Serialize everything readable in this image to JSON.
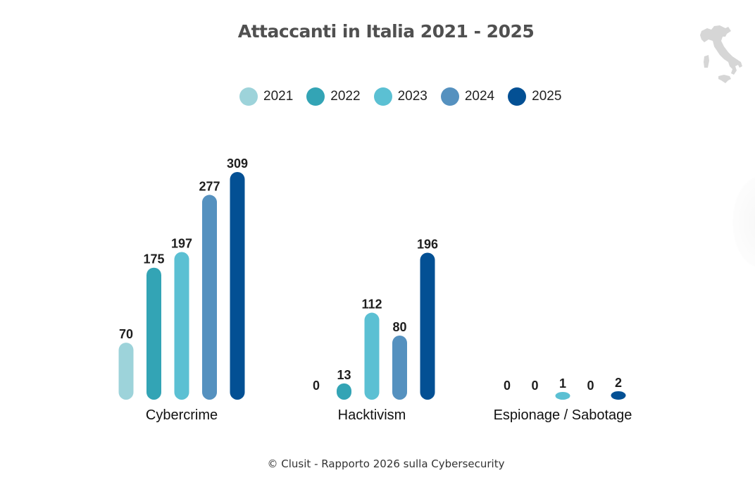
{
  "title": "Attaccanti in Italia 2021 - 2025",
  "footer": "© Clusit - Rapporto 2026 sulla Cybersecurity",
  "logo_icon": "italy-map-icon",
  "chart_data": {
    "type": "bar",
    "title": "Attaccanti in Italia 2021 - 2025",
    "xlabel": "",
    "ylabel": "",
    "grid": false,
    "legend_position": "top-center",
    "categories": [
      "Cybercrime",
      "Hacktivism",
      "Espionage / Sabotage"
    ],
    "series": [
      {
        "name": "2021",
        "color": "#9dd3da",
        "values": [
          70,
          0,
          0
        ]
      },
      {
        "name": "2022",
        "color": "#33a4b5",
        "values": [
          175,
          13,
          0
        ]
      },
      {
        "name": "2023",
        "color": "#5bc0d3",
        "values": [
          197,
          112,
          1
        ]
      },
      {
        "name": "2024",
        "color": "#5591bf",
        "values": [
          277,
          80,
          0
        ]
      },
      {
        "name": "2025",
        "color": "#035094",
        "values": [
          309,
          196,
          2
        ]
      }
    ],
    "ylim": [
      0,
      309
    ]
  }
}
